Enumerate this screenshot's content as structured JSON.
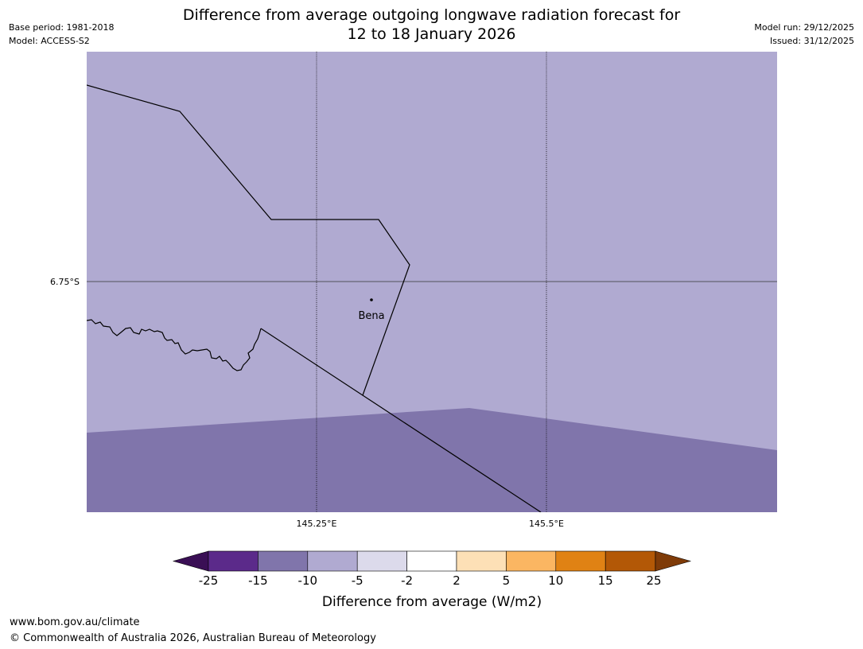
{
  "header": {
    "title_line1": "Difference from average outgoing longwave radiation forecast for",
    "title_line2": "12 to 18 January 2026",
    "base_period": "Base period: 1981-2018",
    "model": "Model: ACCESS-S2",
    "model_run": "Model run: 29/12/2025",
    "issued": "Issued: 31/12/2025"
  },
  "map": {
    "lat_label": "6.75°S",
    "lon_labels": [
      "145.25°E",
      "145.5°E"
    ],
    "place": "Bena",
    "colors": {
      "region_light": "#b0aad1",
      "region_dark": "#8075ab",
      "border": "#000000",
      "gridline": "#333333"
    }
  },
  "legend": {
    "title": "Difference from average (W/m2)",
    "ticks": [
      "-25",
      "-15",
      "-10",
      "-5",
      "-2",
      "2",
      "5",
      "10",
      "15",
      "25"
    ],
    "colors": [
      "#3a0f55",
      "#5b2a8a",
      "#8075ab",
      "#b0aad1",
      "#dcdaeb",
      "#ffffff",
      "#fde0b6",
      "#fbb662",
      "#e08214",
      "#b35806",
      "#7f3b08"
    ]
  },
  "footer": {
    "url": "www.bom.gov.au/climate",
    "copyright": "© Commonwealth of Australia 2026, Australian Bureau of Meteorology"
  }
}
